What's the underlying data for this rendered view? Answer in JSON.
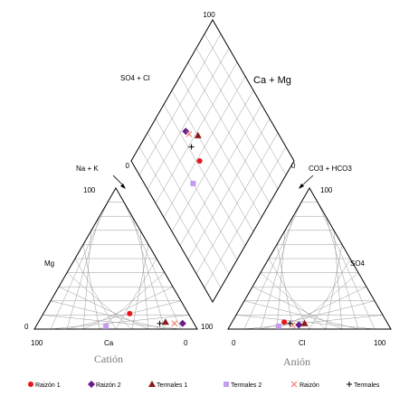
{
  "chart_data": {
    "type": "scatter",
    "subtype": "piper-diagram",
    "diamond": {
      "top_label": "100",
      "left_label": "0",
      "right_label": "0",
      "upper_left_axis": "SO4 + Cl",
      "upper_right_axis": "Ca + Mg",
      "left_arrow_label": "Na + K",
      "right_arrow_label": "CO3 + HCO3"
    },
    "cation_triangle": {
      "title": "Catión",
      "apex_label": "100",
      "left_side_label": "Mg",
      "bottom_label": "Ca",
      "bottom_left_tick": "100",
      "bottom_right_tick": "0",
      "left_corner_tick": "0",
      "right_corner_tick": "100"
    },
    "anion_triangle": {
      "title": "Anión",
      "apex_label": "100",
      "right_side_label": "SO4",
      "bottom_label": "Cl",
      "bottom_left_tick": "0",
      "bottom_right_tick": "100"
    },
    "series": [
      {
        "name": "Raizón 1",
        "marker": "circle",
        "color": "#e8141c",
        "cation": {
          "ca": 36,
          "mg": 11
        },
        "anion": {
          "cl": 32,
          "so4": 5
        },
        "diamond": {
          "x": 42,
          "y": 58
        }
      },
      {
        "name": "Raizón 2",
        "marker": "diamond",
        "color": "#6a1b8a",
        "cation": {
          "ca": 7,
          "mg": 4
        },
        "anion": {
          "cl": 42,
          "so4": 3
        },
        "diamond": {
          "x": 44,
          "y": 77
        }
      },
      {
        "name": "Termales 1",
        "marker": "triangle",
        "color": "#8b1a1a",
        "cation": {
          "ca": 17,
          "mg": 5
        },
        "anion": {
          "cl": 45,
          "so4": 4
        },
        "diamond": {
          "x": 50,
          "y": 68
        }
      },
      {
        "name": "Termales 2",
        "marker": "square",
        "color": "#c79cf0",
        "cation": {
          "ca": 55,
          "mg": 2
        },
        "anion": {
          "cl": 30,
          "so4": 2
        },
        "diamond": {
          "x": 30,
          "y": 54
        }
      },
      {
        "name": "Raizón",
        "marker": "x",
        "color": "#f07060",
        "cation": {
          "ca": 12,
          "mg": 4
        },
        "anion": {
          "cl": 38,
          "so4": 3
        },
        "diamond": {
          "x": 45,
          "y": 74
        }
      },
      {
        "name": "Termales",
        "marker": "plus",
        "color": "#000000",
        "cation": {
          "ca": 21,
          "mg": 4
        },
        "anion": {
          "cl": 36,
          "so4": 4
        },
        "diamond": {
          "x": 42,
          "y": 68
        }
      }
    ]
  }
}
